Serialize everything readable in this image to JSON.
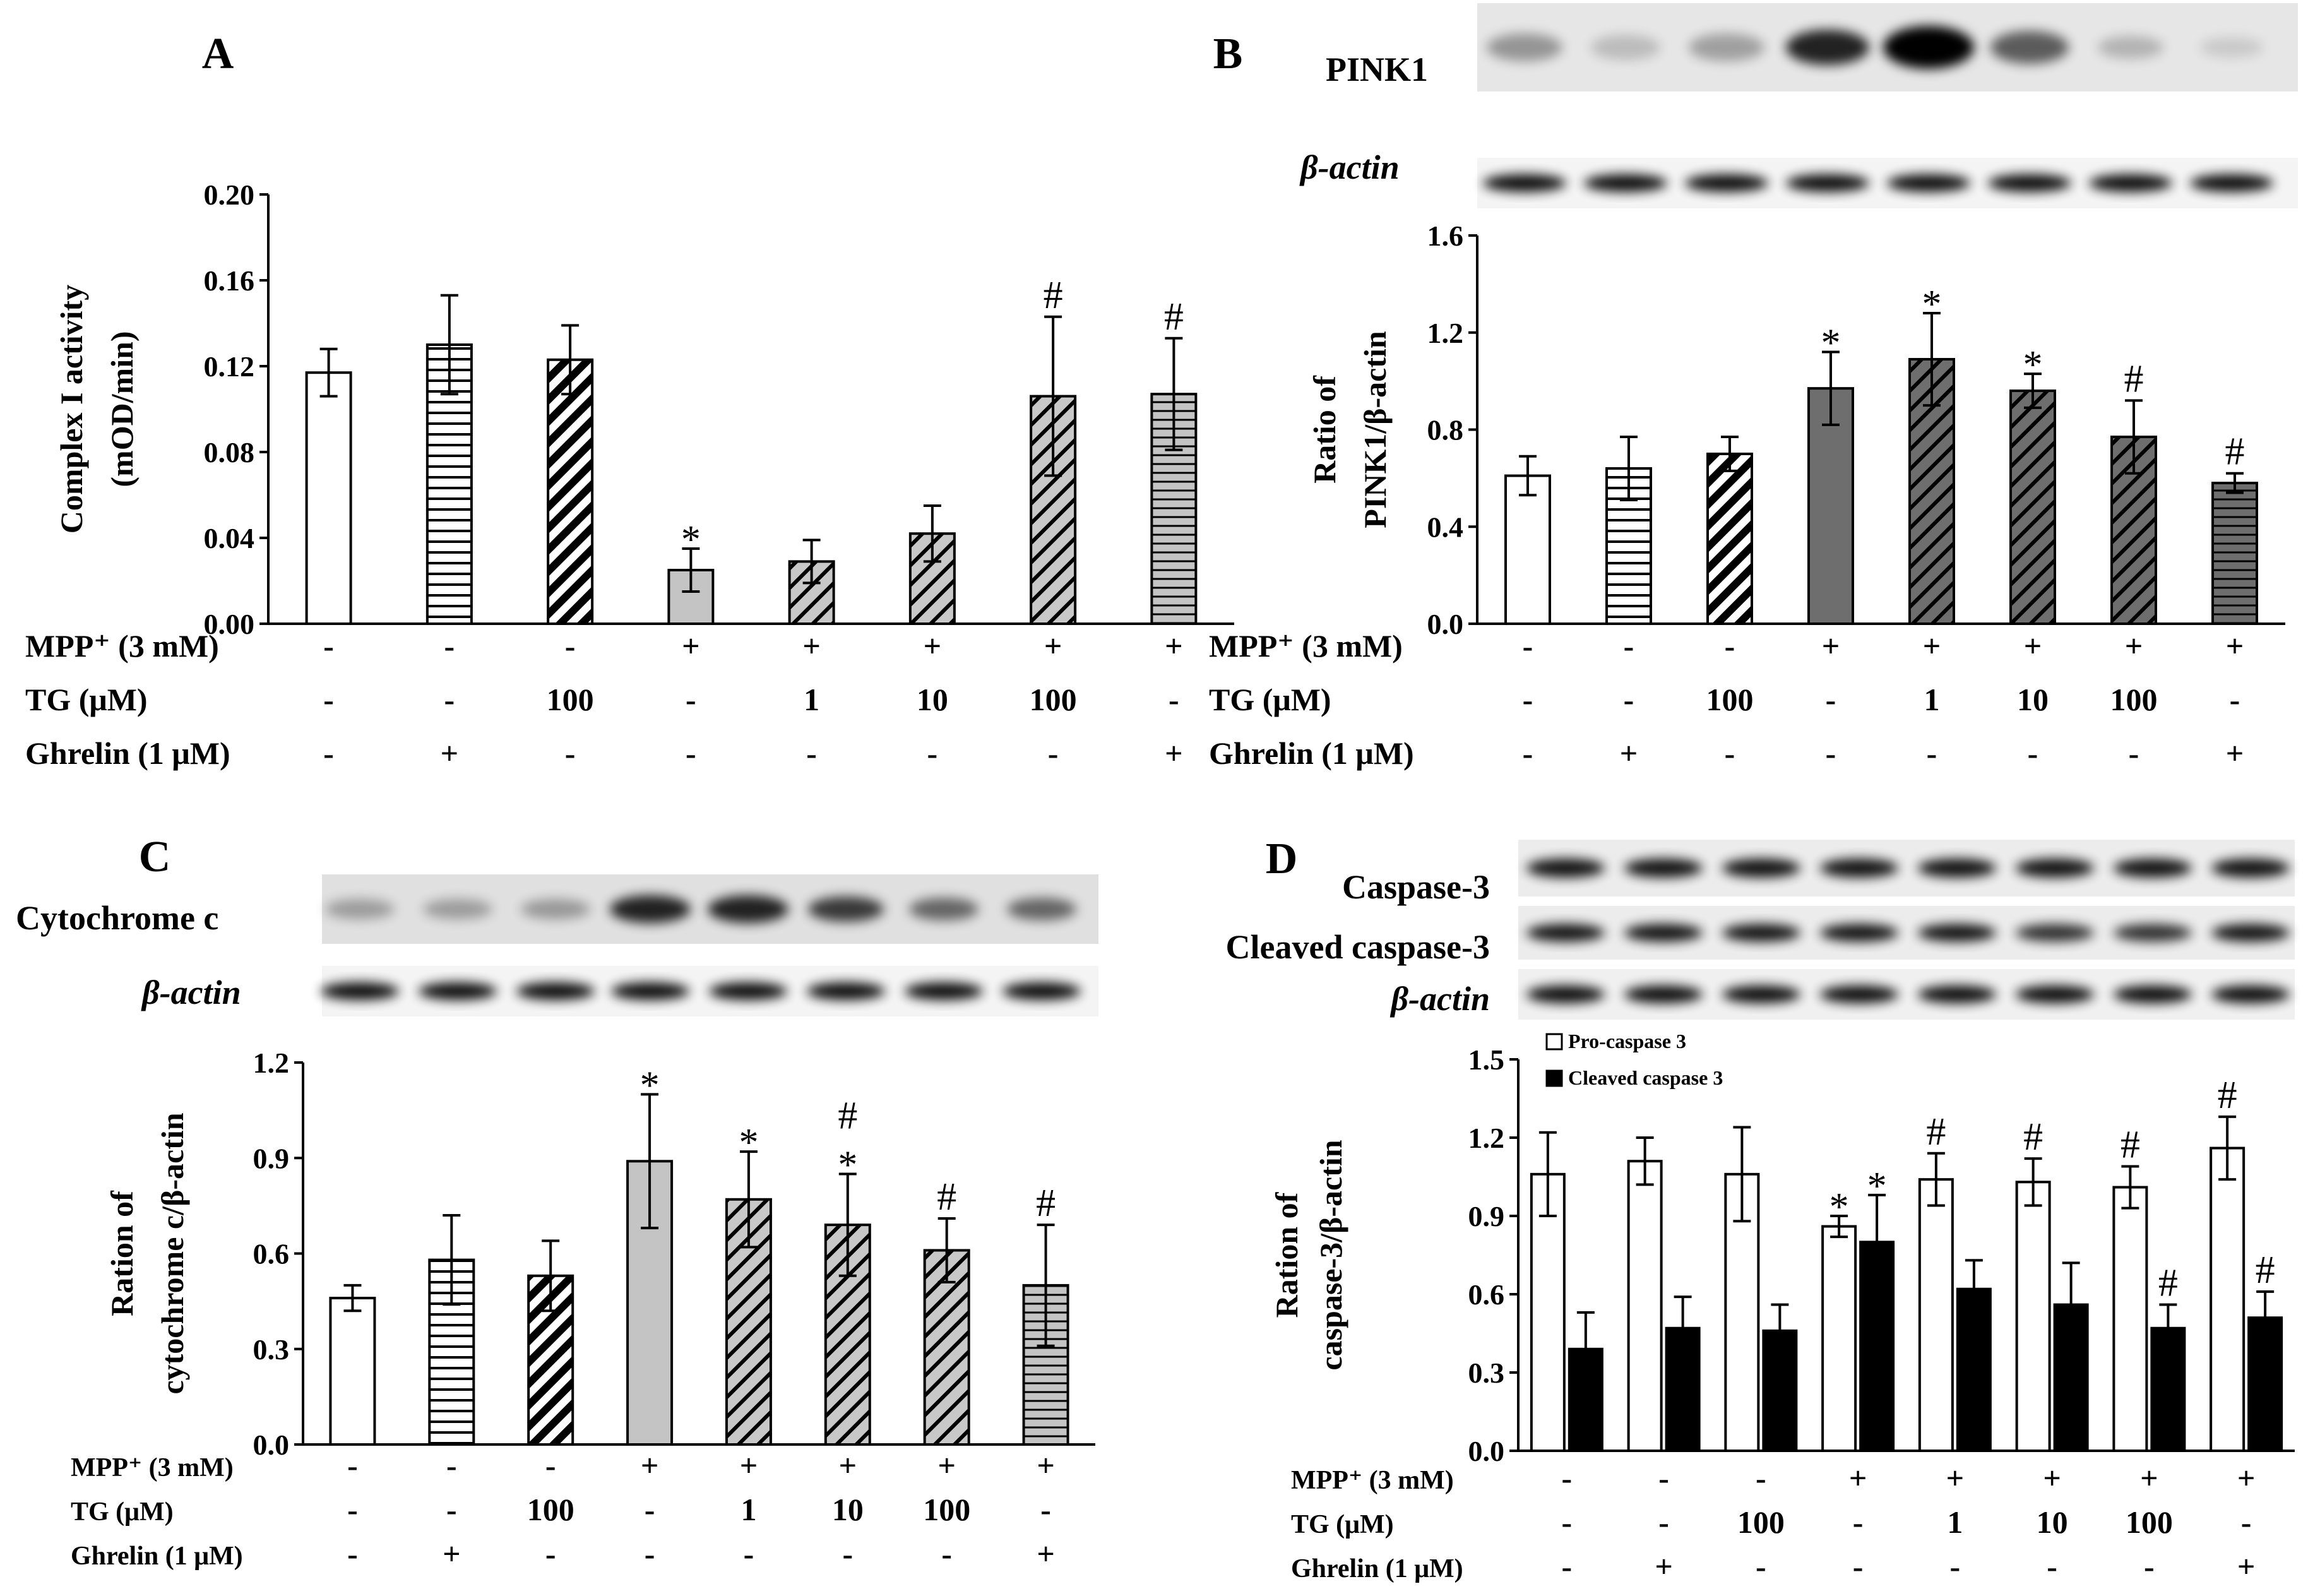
{
  "chart_data": [
    {
      "panel": "A",
      "type": "bar",
      "title": "A",
      "ylabel": [
        "Complex I activity",
        "(mOD/min)"
      ],
      "ylim": [
        0,
        0.2
      ],
      "yticks": [
        "0.00",
        "0.04",
        "0.08",
        "0.12",
        "0.16",
        "0.20"
      ],
      "ytick_values": [
        0,
        0.04,
        0.08,
        0.12,
        0.16,
        0.2
      ],
      "values": [
        0.117,
        0.13,
        0.123,
        0.025,
        0.029,
        0.042,
        0.106,
        0.107
      ],
      "errors": [
        0.011,
        0.023,
        0.016,
        0.01,
        0.01,
        0.013,
        0.037,
        0.026
      ],
      "fills": [
        "white",
        "hlines",
        "diag-white",
        "gray-light",
        "diag-gray",
        "diag-gray",
        "diag-gray",
        "hlines-gray"
      ],
      "marks": [
        "",
        "",
        "",
        "*",
        "",
        "",
        "#",
        "#"
      ],
      "conditions": [
        {
          "label": "MPP⁺ (3 mM)",
          "values": [
            "-",
            "-",
            "-",
            "+",
            "+",
            "+",
            "+",
            "+"
          ]
        },
        {
          "label": "TG (μM)",
          "values": [
            "-",
            "-",
            "100",
            "-",
            "1",
            "10",
            "100",
            "-"
          ]
        },
        {
          "label": "Ghrelin (1 μM)",
          "values": [
            "-",
            "+",
            "-",
            "-",
            "-",
            "-",
            "-",
            "+"
          ]
        }
      ]
    },
    {
      "panel": "B",
      "type": "bar",
      "title": "B",
      "blot_labels": [
        "PINK1",
        "β-actin"
      ],
      "ylabel": [
        "Ratio of",
        "PINK1/β-actin"
      ],
      "ylim": [
        0,
        1.6
      ],
      "yticks": [
        "0.0",
        "0.4",
        "0.8",
        "1.2",
        "1.6"
      ],
      "ytick_values": [
        0,
        0.4,
        0.8,
        1.2,
        1.6
      ],
      "values": [
        0.61,
        0.64,
        0.7,
        0.97,
        1.09,
        0.96,
        0.77,
        0.58
      ],
      "errors": [
        0.08,
        0.13,
        0.07,
        0.15,
        0.19,
        0.07,
        0.15,
        0.04
      ],
      "fills": [
        "white",
        "hlines",
        "diag-white",
        "gray-dark",
        "diag-dark",
        "diag-dark",
        "diag-dark",
        "hlines-dark"
      ],
      "marks": [
        "",
        "",
        "",
        "*",
        "*",
        "*",
        "#",
        "#"
      ],
      "conditions": [
        {
          "label": "MPP⁺ (3 mM)",
          "values": [
            "-",
            "-",
            "-",
            "+",
            "+",
            "+",
            "+",
            "+"
          ]
        },
        {
          "label": "TG (μM)",
          "values": [
            "-",
            "-",
            "100",
            "-",
            "1",
            "10",
            "100",
            "-"
          ]
        },
        {
          "label": "Ghrelin (1 μM)",
          "values": [
            "-",
            "+",
            "-",
            "-",
            "-",
            "-",
            "-",
            "+"
          ]
        }
      ]
    },
    {
      "panel": "C",
      "type": "bar",
      "title": "C",
      "blot_labels": [
        "Cytochrome c",
        "β-actin"
      ],
      "ylabel": [
        "Ration of",
        "cytochrome c/β-actin"
      ],
      "ylim": [
        0,
        1.2
      ],
      "yticks": [
        "0.0",
        "0.3",
        "0.6",
        "0.9",
        "1.2"
      ],
      "ytick_values": [
        0,
        0.3,
        0.6,
        0.9,
        1.2
      ],
      "values": [
        0.46,
        0.58,
        0.53,
        0.89,
        0.77,
        0.69,
        0.61,
        0.5
      ],
      "errors": [
        0.04,
        0.14,
        0.11,
        0.21,
        0.15,
        0.16,
        0.1,
        0.19
      ],
      "fills": [
        "white",
        "hlines",
        "diag-white",
        "gray-light",
        "diag-gray",
        "diag-gray",
        "diag-gray",
        "hlines-gray"
      ],
      "marks": [
        "",
        "",
        "",
        "*",
        "*",
        "#*",
        "#",
        "#"
      ],
      "conditions": [
        {
          "label": "MPP⁺ (3 mM)",
          "values": [
            "-",
            "-",
            "-",
            "+",
            "+",
            "+",
            "+",
            "+"
          ]
        },
        {
          "label": "TG (μM)",
          "values": [
            "-",
            "-",
            "100",
            "-",
            "1",
            "10",
            "100",
            "-"
          ]
        },
        {
          "label": "Ghrelin (1 μM)",
          "values": [
            "-",
            "+",
            "-",
            "-",
            "-",
            "-",
            "-",
            "+"
          ]
        }
      ]
    },
    {
      "panel": "D",
      "type": "bar",
      "title": "D",
      "blot_labels": [
        "Caspase-3",
        "Cleaved caspase-3",
        "β-actin"
      ],
      "ylabel": [
        "Ration of",
        "caspase-3/β-actin"
      ],
      "ylim": [
        0,
        1.5
      ],
      "yticks": [
        "0.0",
        "0.3",
        "0.6",
        "0.9",
        "1.2",
        "1.5"
      ],
      "ytick_values": [
        0,
        0.3,
        0.6,
        0.9,
        1.2,
        1.5
      ],
      "series": [
        {
          "name": "Pro-caspase 3",
          "values": [
            1.06,
            1.11,
            1.06,
            0.86,
            1.04,
            1.03,
            1.01,
            1.16
          ],
          "errors": [
            0.16,
            0.09,
            0.18,
            0.04,
            0.1,
            0.09,
            0.08,
            0.12
          ],
          "marks": [
            "",
            "",
            "",
            "*",
            "#",
            "#",
            "#",
            "#"
          ]
        },
        {
          "name": "Cleaved caspase 3",
          "values": [
            0.39,
            0.47,
            0.46,
            0.8,
            0.62,
            0.56,
            0.47,
            0.51
          ],
          "errors": [
            0.14,
            0.12,
            0.1,
            0.18,
            0.11,
            0.16,
            0.09,
            0.1
          ],
          "marks": [
            "",
            "",
            "",
            "*",
            "",
            "",
            "#",
            "#"
          ]
        }
      ],
      "conditions": [
        {
          "label": "MPP⁺ (3 mM)",
          "values": [
            "-",
            "-",
            "-",
            "+",
            "+",
            "+",
            "+",
            "+"
          ]
        },
        {
          "label": "TG (μM)",
          "values": [
            "-",
            "-",
            "100",
            "-",
            "1",
            "10",
            "100",
            "-"
          ]
        },
        {
          "label": "Ghrelin (1 μM)",
          "values": [
            "-",
            "+",
            "-",
            "-",
            "-",
            "-",
            "-",
            "+"
          ]
        }
      ]
    }
  ]
}
